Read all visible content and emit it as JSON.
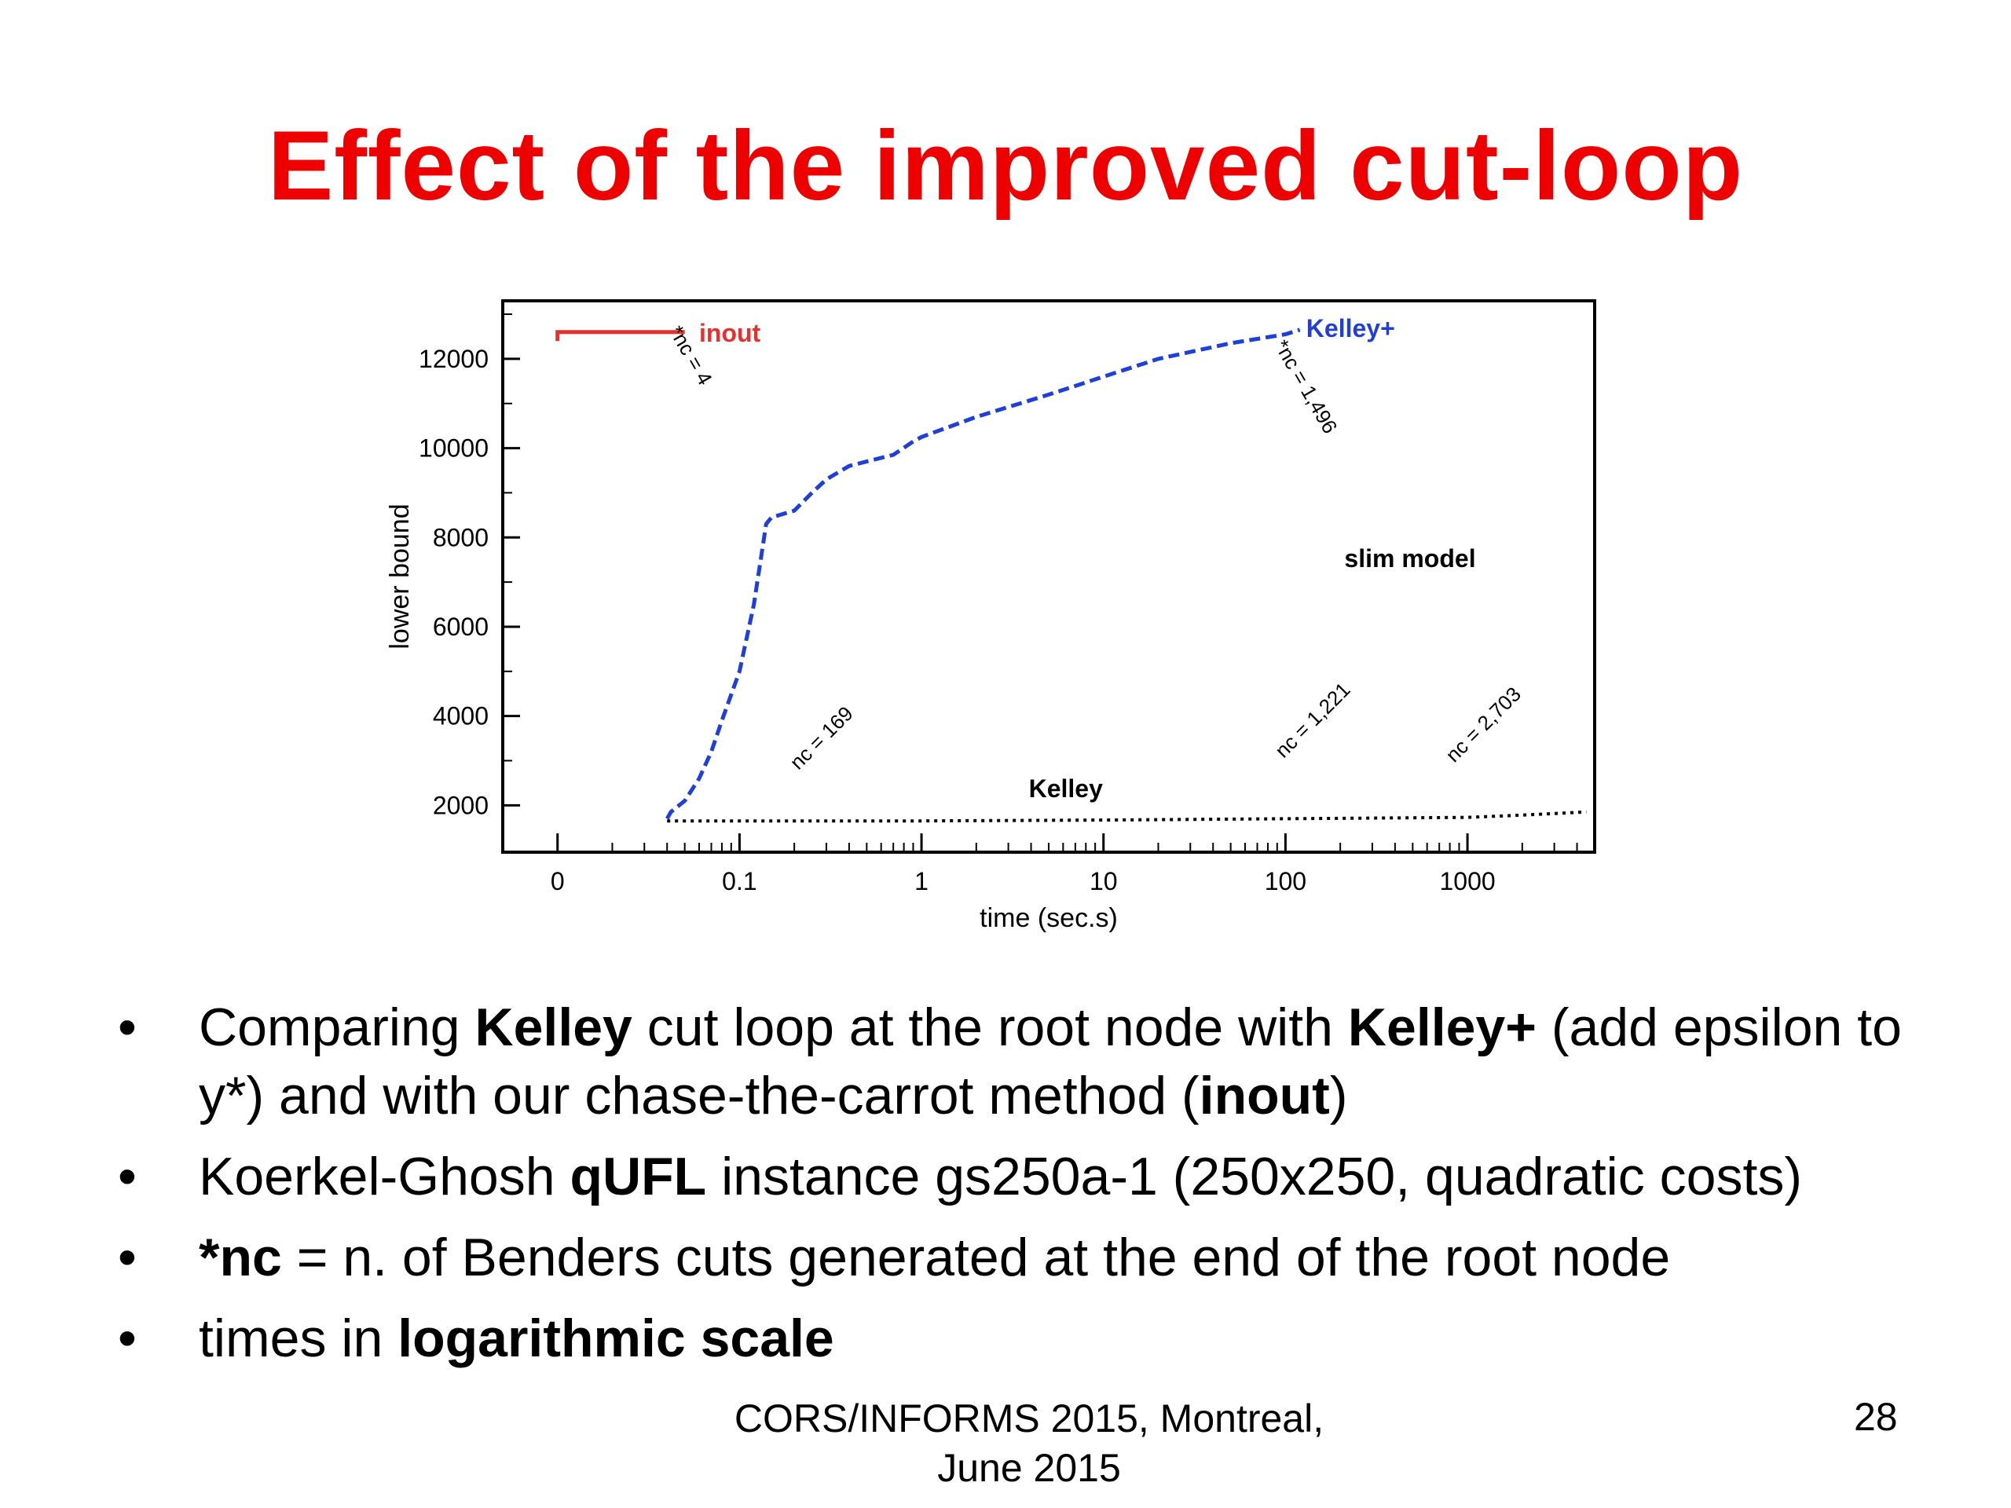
{
  "slide": {
    "title": "Effect of the improved cut-loop",
    "footer_line1": "CORS/INFORMS 2015, Montreal,",
    "footer_line2": "June 2015",
    "page_number": "28"
  },
  "bullets": [
    {
      "parts": [
        {
          "text": "Comparing ",
          "bold": false
        },
        {
          "text": "Kelley",
          "bold": true
        },
        {
          "text": " cut loop at the root node with ",
          "bold": false
        },
        {
          "text": "Kelley+",
          "bold": true
        },
        {
          "text": " (add epsilon to y*) and with our chase-the-carrot method (",
          "bold": false
        },
        {
          "text": "inout",
          "bold": true
        },
        {
          "text": ")",
          "bold": false
        }
      ]
    },
    {
      "parts": [
        {
          "text": "Koerkel-Ghosh ",
          "bold": false
        },
        {
          "text": "qUFL",
          "bold": true
        },
        {
          "text": " instance gs250a-1 (250x250, quadratic costs)",
          "bold": false
        }
      ]
    },
    {
      "parts": [
        {
          "text": "*nc",
          "bold": true
        },
        {
          "text": " = n. of Benders cuts generated at the end of the root node",
          "bold": false
        }
      ]
    },
    {
      "parts": [
        {
          "text": "times in ",
          "bold": false
        },
        {
          "text": "logarithmic scale",
          "bold": true
        }
      ]
    }
  ],
  "chart_data": {
    "type": "line",
    "xlabel": "time (sec.s)",
    "ylabel": "lower bound",
    "x_scale": "log",
    "x_ticks": [
      "0",
      "0.1",
      "1",
      "10",
      "100",
      "1000"
    ],
    "y_ticks": [
      "2000",
      "4000",
      "6000",
      "8000",
      "10000",
      "12000"
    ],
    "ylim": [
      950,
      13300
    ],
    "xlim": [
      0.005,
      5000
    ],
    "inner_label": "slim model",
    "series": [
      {
        "name": "inout",
        "color": "#e53030",
        "style": "solid",
        "x": [
          0.01,
          0.01,
          0.05
        ],
        "y": [
          12400,
          12600,
          12600
        ]
      },
      {
        "name": "Kelley+",
        "color": "#1f3fd8",
        "style": "dashed",
        "x": [
          0.04,
          0.042,
          0.05,
          0.06,
          0.07,
          0.08,
          0.1,
          0.12,
          0.14,
          0.15,
          0.2,
          0.25,
          0.3,
          0.4,
          0.5,
          0.7,
          0.9,
          1,
          2,
          5,
          10,
          20,
          50,
          100,
          120
        ],
        "y": [
          1700,
          1850,
          2100,
          2600,
          3200,
          3900,
          5000,
          6500,
          8300,
          8450,
          8600,
          9000,
          9300,
          9600,
          9700,
          9850,
          10150,
          10250,
          10700,
          11200,
          11600,
          12000,
          12350,
          12550,
          12650
        ]
      },
      {
        "name": "Kelley",
        "color": "#000000",
        "style": "dotted",
        "x": [
          0.04,
          1,
          10,
          100,
          1000,
          2000,
          4500
        ],
        "y": [
          1650,
          1650,
          1670,
          1700,
          1730,
          1780,
          1850
        ]
      }
    ],
    "annotations": [
      {
        "text": "*nc = 4",
        "x": 0.05,
        "y": 12000,
        "angle": 60
      },
      {
        "text": "*nc = 1,496",
        "x": 120,
        "y": 11300,
        "angle": 60
      },
      {
        "text": "nc = 169",
        "x": 0.3,
        "y": 3400,
        "angle": -45
      },
      {
        "text": "nc = 1,221",
        "x": 150,
        "y": 3800,
        "angle": -45
      },
      {
        "text": "nc = 2,703",
        "x": 1300,
        "y": 3700,
        "angle": -45
      }
    ]
  }
}
